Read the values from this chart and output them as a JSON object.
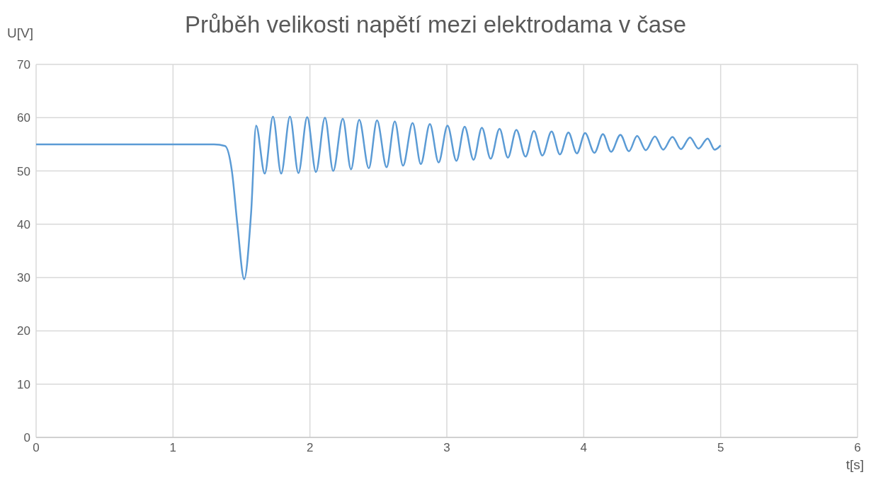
{
  "chart_data": {
    "type": "line",
    "title": "Průběh velikosti napětí mezi elektrodama v čase",
    "xlabel": "t[s]",
    "ylabel": "U[V]",
    "x": [
      0,
      1.3,
      1.38,
      1.43,
      1.47,
      1.52,
      1.57,
      1.607,
      1.67,
      1.73,
      1.79,
      1.854,
      1.916,
      1.98,
      2.044,
      2.11,
      2.17,
      2.24,
      2.3,
      2.36,
      2.43,
      2.49,
      2.56,
      2.62,
      2.68,
      2.75,
      2.81,
      2.876,
      2.94,
      3.005,
      3.07,
      3.13,
      3.195,
      3.256,
      3.32,
      3.385,
      3.446,
      3.508,
      3.575,
      3.636,
      3.698,
      3.765,
      3.826,
      3.888,
      3.95,
      4.01,
      4.078,
      4.14,
      4.2,
      4.268,
      4.33,
      4.39,
      4.453,
      4.52,
      4.58,
      4.648,
      4.71,
      4.776,
      4.838,
      4.905,
      4.956,
      5.0
    ],
    "series": [
      {
        "color": "#5b9bd5",
        "values": [
          55,
          55,
          54.7,
          50,
          40,
          29.7,
          42,
          58.5,
          49.5,
          60.2,
          49.5,
          60.2,
          49.6,
          60.1,
          49.8,
          60,
          50,
          59.8,
          50.3,
          59.6,
          50.5,
          59.5,
          50.7,
          59.3,
          51,
          59,
          51.3,
          58.8,
          51.6,
          58.5,
          51.9,
          58.3,
          52.1,
          58.1,
          52.3,
          57.9,
          52.5,
          57.7,
          52.7,
          57.5,
          52.9,
          57.4,
          53.1,
          57.2,
          53.3,
          57.1,
          53.4,
          56.9,
          53.6,
          56.8,
          53.7,
          56.6,
          53.9,
          56.5,
          54,
          56.4,
          54.1,
          56.3,
          54.2,
          56.1,
          54,
          54.8
        ]
      }
    ],
    "xlim": [
      0,
      6
    ],
    "xticks": [
      0,
      1,
      2,
      3,
      4,
      5,
      6
    ],
    "ylim": [
      0,
      70
    ],
    "yticks": [
      0,
      10,
      20,
      30,
      40,
      50,
      60,
      70
    ],
    "grid": true,
    "marker": "none",
    "line_style": "solid",
    "legend": false
  }
}
